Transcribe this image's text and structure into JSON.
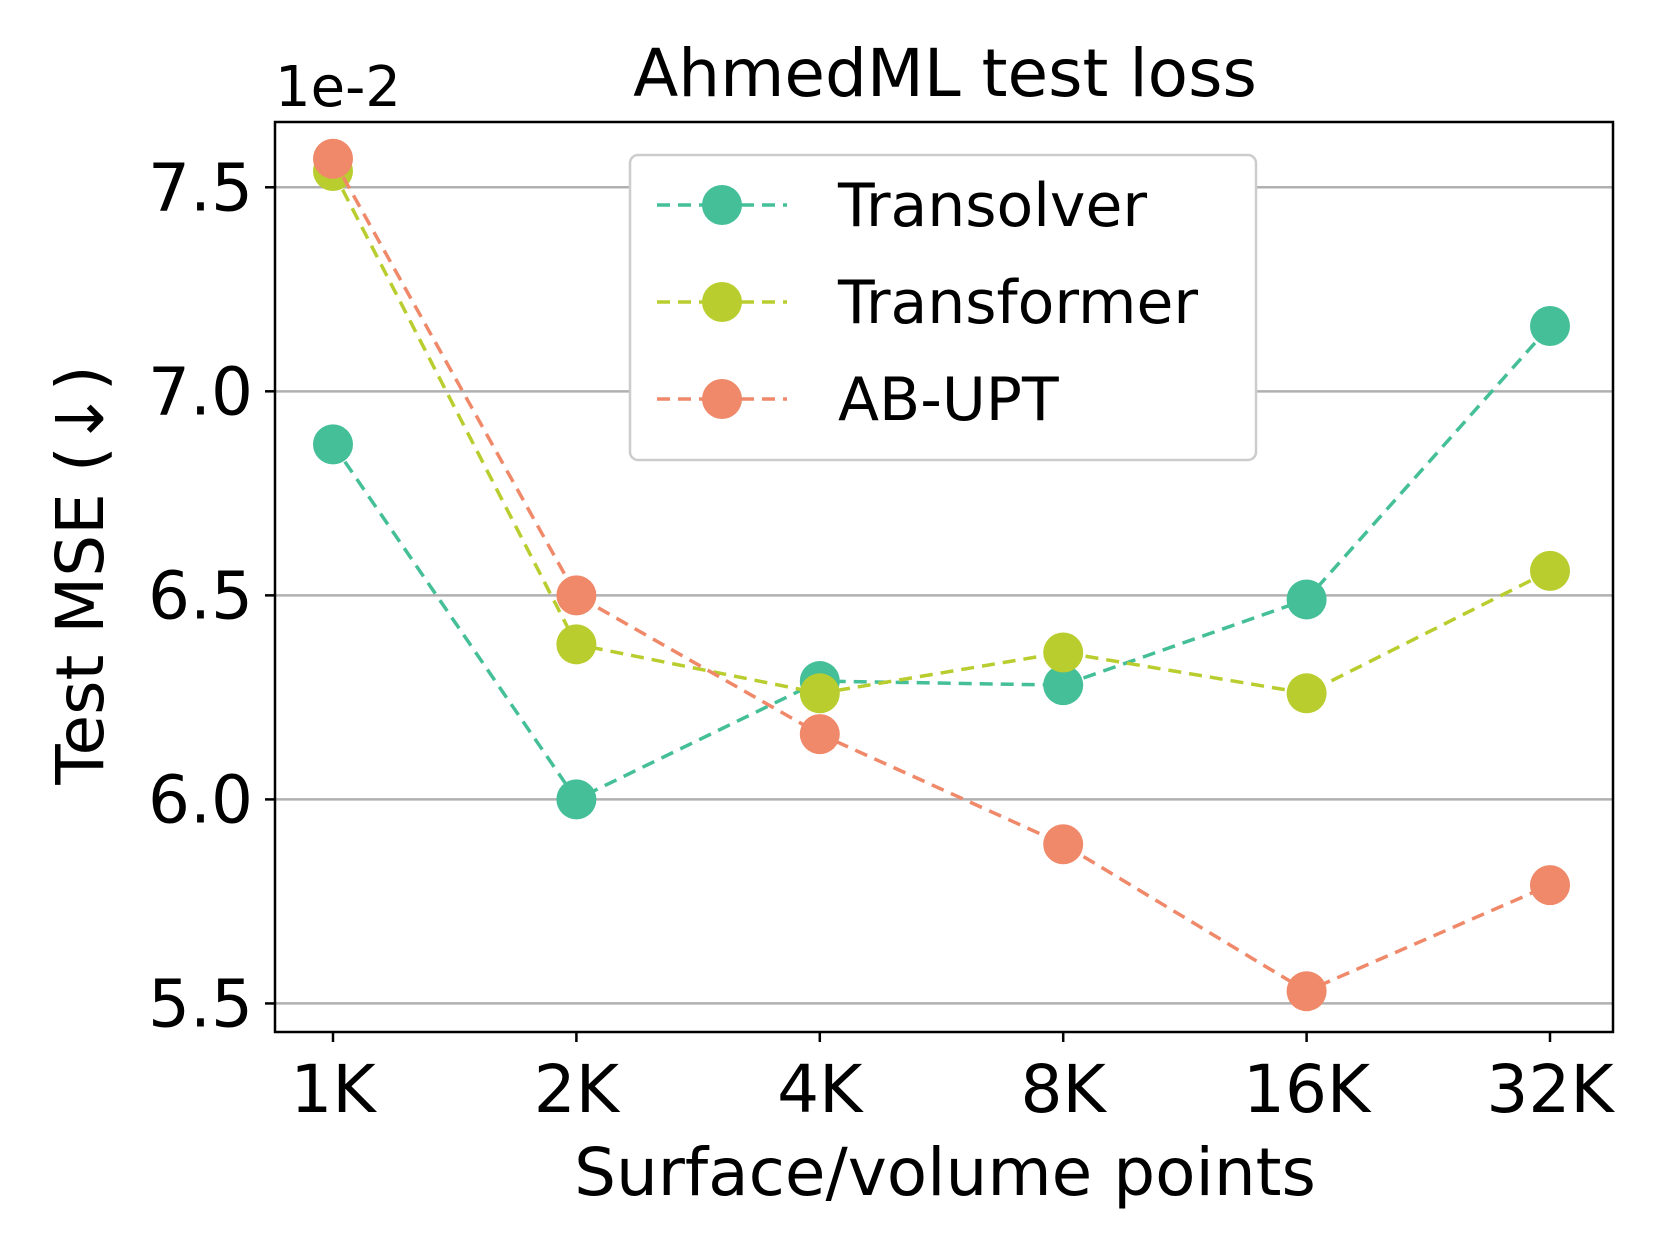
{
  "chart_data": {
    "type": "line",
    "title": "AhmedML test loss",
    "xlabel": "Surface/volume points",
    "ylabel": "Test MSE (↓)",
    "y_offset_label": "1e-2",
    "categories": [
      "1K",
      "2K",
      "4K",
      "8K",
      "16K",
      "32K"
    ],
    "ylim": [
      5.43,
      7.66
    ],
    "yticks": [
      5.5,
      6.0,
      6.5,
      7.0,
      7.5
    ],
    "ytick_labels": [
      "5.5",
      "6.0",
      "6.5",
      "7.0",
      "7.5"
    ],
    "grid": "horizontal",
    "legend_position": "top-center",
    "series": [
      {
        "name": "Transolver",
        "color": "#44bf98",
        "values": [
          6.87,
          6.0,
          6.29,
          6.28,
          6.49,
          7.16
        ]
      },
      {
        "name": "Transformer",
        "color": "#b9cd2f",
        "values": [
          7.54,
          6.38,
          6.26,
          6.36,
          6.26,
          6.56
        ]
      },
      {
        "name": "AB-UPT",
        "color": "#ef896a",
        "values": [
          7.57,
          6.5,
          6.16,
          5.89,
          5.53,
          5.79
        ]
      }
    ]
  }
}
